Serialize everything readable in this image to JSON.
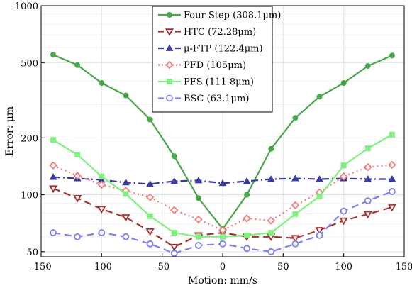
{
  "chart_data": {
    "type": "line",
    "title": "",
    "xlabel": "Motion: mm/s",
    "ylabel": "Error: μm",
    "xlim": [
      -150,
      150
    ],
    "ylim": [
      47,
      1000
    ],
    "yscale": "log",
    "xticks": [
      -150,
      -100,
      -50,
      0,
      50,
      100,
      150
    ],
    "yticks": [
      50,
      100,
      200,
      500,
      1000
    ],
    "xtick_labels": [
      "-150",
      "-100",
      "-50",
      "0",
      "50",
      "100",
      "150"
    ],
    "ytick_labels": [
      "50",
      "100",
      "200",
      "500",
      "1000"
    ],
    "grid": true,
    "legend_position": "top-center",
    "x": [
      -140,
      -120,
      -100,
      -80,
      -60,
      -40,
      -20,
      0,
      20,
      40,
      60,
      80,
      100,
      120,
      140
    ],
    "series": [
      {
        "name": "Four Step (308.1μm)",
        "color": "#4aa64a",
        "marker": "circle",
        "dash": "solid",
        "values": [
          550,
          485,
          390,
          335,
          250,
          160,
          96,
          66,
          100,
          175,
          255,
          330,
          390,
          480,
          545
        ]
      },
      {
        "name": "HTC (72.28μm)",
        "color": "#a83232",
        "marker": "triangle-down",
        "dash": "dashed",
        "values": [
          108,
          96,
          84,
          76,
          64,
          53,
          61,
          63,
          60,
          60,
          59,
          65,
          73,
          79,
          86
        ]
      },
      {
        "name": "μ-FTP (122.4μm)",
        "color": "#3a3aa0",
        "marker": "triangle-up",
        "dash": "dashdot",
        "values": [
          124,
          122,
          120,
          116,
          114,
          118,
          119,
          115,
          118,
          121,
          122,
          121,
          122,
          121,
          121
        ]
      },
      {
        "name": "PFD (105μm)",
        "color": "#f08080",
        "marker": "diamond",
        "dash": "dotted",
        "values": [
          143,
          126,
          113,
          105,
          97,
          83,
          74,
          65,
          75,
          73,
          88,
          103,
          125,
          140,
          144
        ]
      },
      {
        "name": "PFS (111.8μm)",
        "color": "#80f080",
        "marker": "square",
        "dash": "solid",
        "values": [
          195,
          163,
          125,
          101,
          77,
          63,
          60,
          60,
          61,
          63,
          79,
          98,
          143,
          176,
          208
        ]
      },
      {
        "name": "BSC (63.1μm)",
        "color": "#8080f0",
        "marker": "circle-open",
        "dash": "dashed",
        "values": [
          63,
          60,
          63,
          60,
          55,
          49,
          54,
          55,
          52,
          50,
          55,
          61,
          82,
          93,
          104
        ]
      }
    ]
  }
}
